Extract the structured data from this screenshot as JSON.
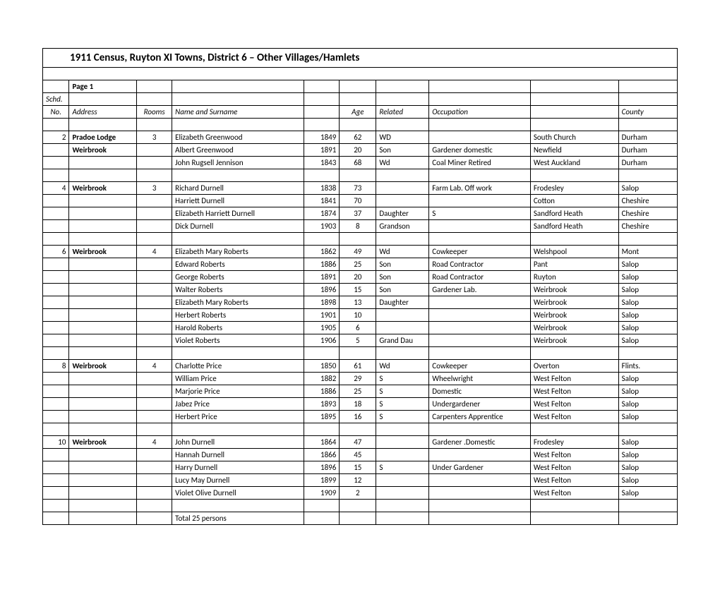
{
  "title": "1911 Census, Ruyton XI Towns, District 6 – Other Villages/Hamlets",
  "page_label": "Page 1",
  "headers": {
    "schd": "Schd.",
    "no": "No.",
    "address": "Address",
    "rooms": "Rooms",
    "name": "Name and Surname",
    "age": "Age",
    "related": "Related",
    "occupation": "Occupation",
    "county": "County"
  },
  "rows": [
    {
      "no": "2",
      "address": "Pradoe Lodge",
      "addrBold": true,
      "rooms": "3",
      "name": "Elizabeth Greenwood",
      "year": "1849",
      "age": "62",
      "related": "WD",
      "occupation": "",
      "place": "South Church",
      "county": "Durham"
    },
    {
      "no": "",
      "address": "Weirbrook",
      "addrBold": true,
      "rooms": "",
      "name": "Albert Greenwood",
      "year": "1891",
      "age": "20",
      "related": "Son",
      "occupation": "Gardener domestic",
      "place": "Newfield",
      "county": "Durham"
    },
    {
      "no": "",
      "address": "",
      "rooms": "",
      "name": "John Rugsell Jennison",
      "year": "1843",
      "age": "68",
      "related": "Wd",
      "occupation": "Coal Miner Retired",
      "place": "West Auckland",
      "county": "Durham"
    },
    {
      "blank": true
    },
    {
      "no": "4",
      "address": "Weirbrook",
      "addrBold": true,
      "rooms": "3",
      "name": "Richard Durnell",
      "year": "1838",
      "age": "73",
      "related": "",
      "occupation": "Farm Lab. Off work",
      "place": "Frodesley",
      "county": "Salop"
    },
    {
      "no": "",
      "address": "",
      "rooms": "",
      "name": "Harriett Durnell",
      "year": "1841",
      "age": "70",
      "related": "",
      "occupation": "",
      "place": "Cotton",
      "county": "Cheshire"
    },
    {
      "no": "",
      "address": "",
      "rooms": "",
      "name": "Elizabeth Harriett Durnell",
      "year": "1874",
      "age": "37",
      "related": "Daughter",
      "occupation": "S",
      "place": "Sandford Heath",
      "county": "Cheshire"
    },
    {
      "no": "",
      "address": "",
      "rooms": "",
      "name": "Dick Durnell",
      "year": "1903",
      "age": "8",
      "related": "Grandson",
      "occupation": "",
      "place": "Sandford Heath",
      "county": "Cheshire"
    },
    {
      "blank": true
    },
    {
      "no": "6",
      "address": "Weirbrook",
      "addrBold": true,
      "rooms": "4",
      "name": "Elizabeth Mary Roberts",
      "year": "1862",
      "age": "49",
      "related": "Wd",
      "occupation": "Cowkeeper",
      "place": "Welshpool",
      "county": "Mont"
    },
    {
      "no": "",
      "address": "",
      "rooms": "",
      "name": "Edward Roberts",
      "year": "1886",
      "age": "25",
      "related": "Son",
      "occupation": "Road Contractor",
      "place": "Pant",
      "county": "Salop"
    },
    {
      "no": "",
      "address": "",
      "rooms": "",
      "name": "George Roberts",
      "year": "1891",
      "age": "20",
      "related": "Son",
      "occupation": "Road Contractor",
      "place": "Ruyton",
      "county": "Salop"
    },
    {
      "no": "",
      "address": "",
      "rooms": "",
      "name": "Walter Roberts",
      "year": "1896",
      "age": "15",
      "related": "Son",
      "occupation": "Gardener Lab.",
      "place": "Weirbrook",
      "county": "Salop"
    },
    {
      "no": "",
      "address": "",
      "rooms": "",
      "name": "Elizabeth Mary Roberts",
      "year": "1898",
      "age": "13",
      "related": "Daughter",
      "occupation": "",
      "place": "Weirbrook",
      "county": "Salop"
    },
    {
      "no": "",
      "address": "",
      "rooms": "",
      "name": "Herbert Roberts",
      "year": "1901",
      "age": "10",
      "related": "",
      "occupation": "",
      "place": "Weirbrook",
      "county": "Salop"
    },
    {
      "no": "",
      "address": "",
      "rooms": "",
      "name": "Harold Roberts",
      "year": "1905",
      "age": "6",
      "related": "",
      "occupation": "",
      "place": "Weirbrook",
      "county": "Salop"
    },
    {
      "no": "",
      "address": "",
      "rooms": "",
      "name": "Violet Roberts",
      "year": "1906",
      "age": "5",
      "related": "Grand Dau",
      "occupation": "",
      "place": "Weirbrook",
      "county": "Salop"
    },
    {
      "blank": true
    },
    {
      "no": "8",
      "address": "Weirbrook",
      "addrBold": true,
      "rooms": "4",
      "name": "Charlotte Price",
      "year": "1850",
      "age": "61",
      "related": "Wd",
      "occupation": "Cowkeeper",
      "place": "Overton",
      "county": "Flints."
    },
    {
      "no": "",
      "address": "",
      "rooms": "",
      "name": "William Price",
      "year": "1882",
      "age": "29",
      "related": "S",
      "occupation": "Wheelwright",
      "place": "West Felton",
      "county": "Salop"
    },
    {
      "no": "",
      "address": "",
      "rooms": "",
      "name": "Marjorie Price",
      "year": "1886",
      "age": "25",
      "related": "S",
      "occupation": "Domestic",
      "place": "West Felton",
      "county": "Salop"
    },
    {
      "no": "",
      "address": "",
      "rooms": "",
      "name": "Jabez Price",
      "year": "1893",
      "age": "18",
      "related": "S",
      "occupation": "Undergardener",
      "place": "West Felton",
      "county": "Salop"
    },
    {
      "no": "",
      "address": "",
      "rooms": "",
      "name": "Herbert Price",
      "year": "1895",
      "age": "16",
      "related": "S",
      "occupation": "Carpenters Apprentice",
      "place": "West Felton",
      "county": "Salop"
    },
    {
      "blank": true
    },
    {
      "no": "10",
      "address": "Weirbrook",
      "addrBold": true,
      "rooms": "4",
      "name": "John Durnell",
      "year": "1864",
      "age": "47",
      "related": "",
      "occupation": "Gardener .Domestic",
      "place": "Frodesley",
      "county": "Salop"
    },
    {
      "no": "",
      "address": "",
      "rooms": "",
      "name": "Hannah Durnell",
      "year": "1866",
      "age": "45",
      "related": "",
      "occupation": "",
      "place": "West Felton",
      "county": "Salop"
    },
    {
      "no": "",
      "address": "",
      "rooms": "",
      "name": "Harry Durnell",
      "year": "1896",
      "age": "15",
      "related": "S",
      "occupation": "Under Gardener",
      "place": "West Felton",
      "county": "Salop"
    },
    {
      "no": "",
      "address": "",
      "rooms": "",
      "name": "Lucy May Durnell",
      "year": "1899",
      "age": "12",
      "related": "",
      "occupation": "",
      "place": "West Felton",
      "county": "Salop"
    },
    {
      "no": "",
      "address": "",
      "rooms": "",
      "name": "Violet Olive Durnell",
      "year": "1909",
      "age": "2",
      "related": "",
      "occupation": "",
      "place": "West Felton",
      "county": "Salop"
    },
    {
      "blank": true
    },
    {
      "no": "",
      "address": "",
      "rooms": "",
      "name": "Total 25 persons",
      "year": "",
      "age": "",
      "related": "",
      "occupation": "",
      "place": "",
      "county": ""
    }
  ]
}
